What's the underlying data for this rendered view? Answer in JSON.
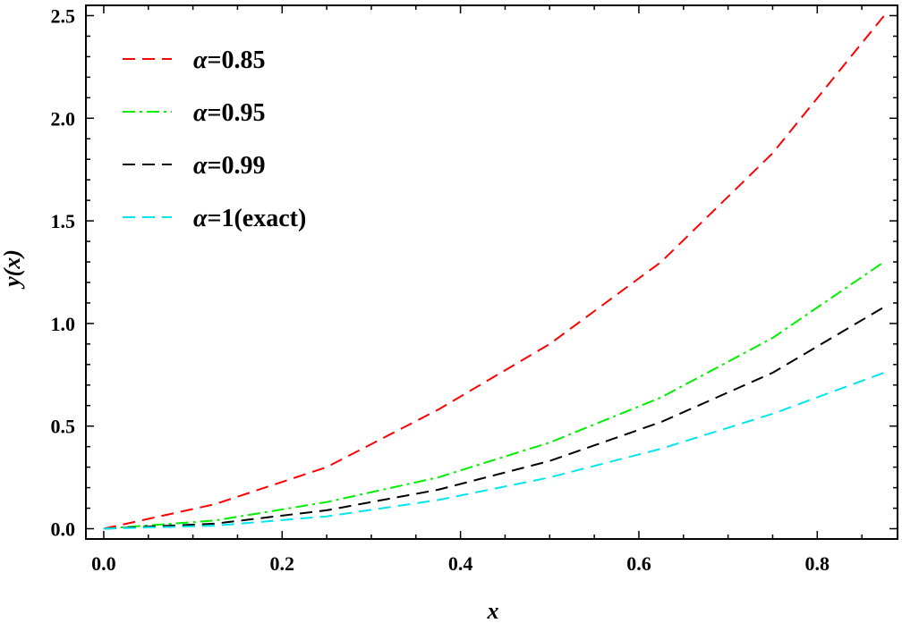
{
  "chart_data": {
    "type": "line",
    "title": "",
    "xlabel": "x",
    "ylabel": "y(x)",
    "xlim": [
      -0.02,
      0.89
    ],
    "ylim": [
      -0.05,
      2.55
    ],
    "x_ticks": [
      0.0,
      0.2,
      0.4,
      0.6,
      0.8
    ],
    "x_tick_labels": [
      "0.0",
      "0.2",
      "0.4",
      "0.6",
      "0.8"
    ],
    "y_ticks": [
      0.0,
      0.5,
      1.0,
      1.5,
      2.0,
      2.5
    ],
    "y_tick_labels": [
      "0.0",
      "0.5",
      "1.0",
      "1.5",
      "2.0",
      "2.5"
    ],
    "grid": false,
    "legend_position": "top-left",
    "series": [
      {
        "name": "α=0.85",
        "color": "#ff0000",
        "dash": "dashed",
        "x": [
          0.0,
          0.125,
          0.25,
          0.375,
          0.5,
          0.625,
          0.75,
          0.875
        ],
        "y": [
          0.0,
          0.12,
          0.3,
          0.58,
          0.9,
          1.3,
          1.83,
          2.5
        ]
      },
      {
        "name": "α=0.95",
        "color": "#00ee00",
        "dash": "dashdot",
        "x": [
          0.0,
          0.125,
          0.25,
          0.375,
          0.5,
          0.625,
          0.75,
          0.875
        ],
        "y": [
          0.0,
          0.04,
          0.13,
          0.25,
          0.42,
          0.64,
          0.93,
          1.3
        ]
      },
      {
        "name": "α=0.99",
        "color": "#000000",
        "dash": "dashed",
        "x": [
          0.0,
          0.125,
          0.25,
          0.375,
          0.5,
          0.625,
          0.75,
          0.875
        ],
        "y": [
          0.0,
          0.025,
          0.09,
          0.19,
          0.33,
          0.52,
          0.76,
          1.08
        ]
      },
      {
        "name": "α=1(exact)",
        "color": "#00e5ee",
        "dash": "dashed",
        "x": [
          0.0,
          0.125,
          0.25,
          0.375,
          0.5,
          0.625,
          0.75,
          0.875
        ],
        "y": [
          0.0,
          0.015,
          0.06,
          0.14,
          0.25,
          0.39,
          0.56,
          0.76
        ]
      }
    ]
  }
}
